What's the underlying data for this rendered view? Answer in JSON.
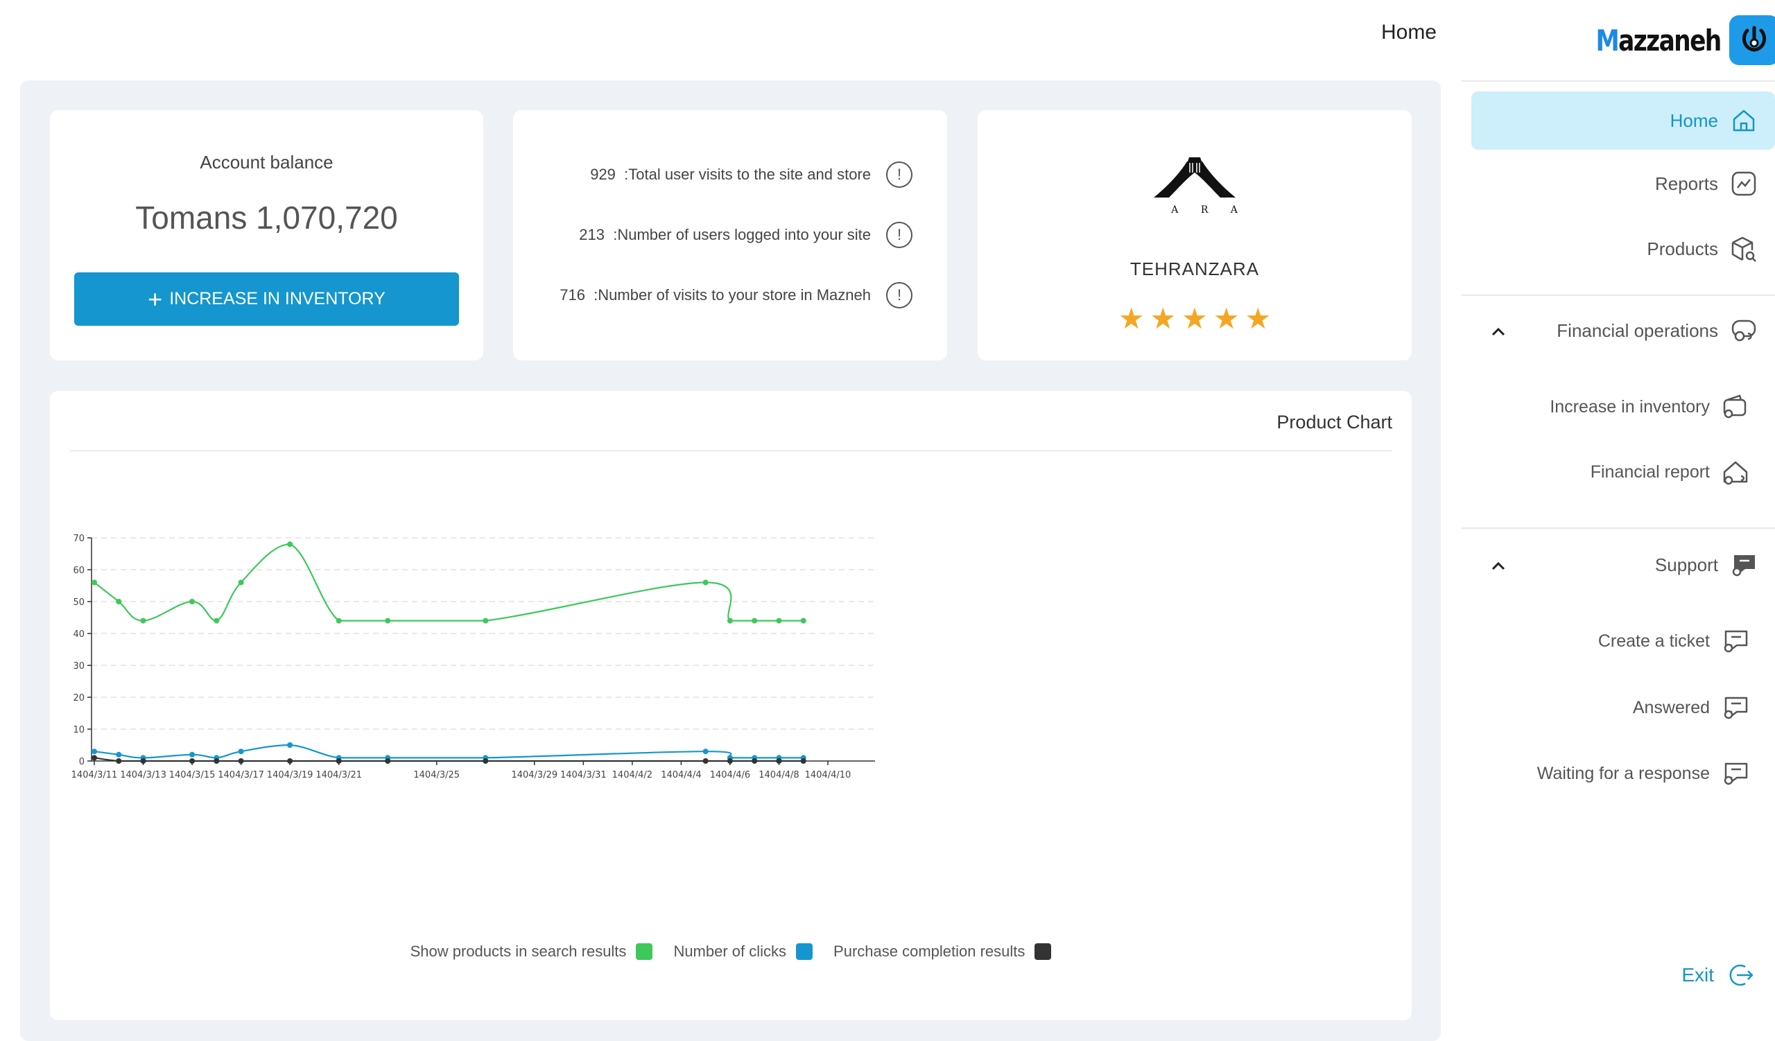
{
  "header": {
    "home_label": "Home"
  },
  "brand": {
    "name": "Mazzaneh",
    "first_letter": "M",
    "rest": "azzaneh",
    "accent": "#1e9be8"
  },
  "balance": {
    "title": "Account balance",
    "amount": "Tomans 1,070,720",
    "button_label": "INCREASE IN INVENTORY"
  },
  "stats": [
    {
      "value": "929",
      "label": ":Total user visits to the site and store"
    },
    {
      "value": "213",
      "label": ":Number of users logged into your site"
    },
    {
      "value": "716",
      "label": ":Number of visits to your store in Mazneh"
    }
  ],
  "store": {
    "name": "TEHRANZARA",
    "logo_letters": "Z A R A",
    "rating": 5
  },
  "sidebar": {
    "home": "Home",
    "reports": "Reports",
    "products": "Products",
    "financial_operations": "Financial operations",
    "increase_in_inventory": "Increase in inventory",
    "financial_report": "Financial report",
    "support": "Support",
    "create_ticket": "Create a ticket",
    "answered": "Answered",
    "waiting": "Waiting for a response",
    "exit": "Exit"
  },
  "chart_data": {
    "type": "line",
    "title": "Product Chart",
    "x": [
      "1404/3/11",
      "1404/3/12",
      "1404/3/13",
      "1404/3/15",
      "1404/3/16",
      "1404/3/17",
      "1404/3/19",
      "1404/3/21",
      "1404/3/23",
      "1404/3/27",
      "1404/4/5",
      "1404/4/6",
      "1404/4/7",
      "1404/4/8",
      "1404/4/9"
    ],
    "x_positions": [
      0,
      1,
      2,
      4,
      5,
      6,
      8,
      10,
      12,
      16,
      25,
      26,
      27,
      28,
      29
    ],
    "tick_labels": [
      {
        "label": "1404/3/11",
        "pos": 0
      },
      {
        "label": "1404/3/13",
        "pos": 2
      },
      {
        "label": "1404/3/15",
        "pos": 4
      },
      {
        "label": "1404/3/17",
        "pos": 6
      },
      {
        "label": "1404/3/19",
        "pos": 8
      },
      {
        "label": "1404/3/21",
        "pos": 10
      },
      {
        "label": "1404/3/25",
        "pos": 14
      },
      {
        "label": "1404/3/29",
        "pos": 18
      },
      {
        "label": "1404/3/31",
        "pos": 20
      },
      {
        "label": "1404/4/2",
        "pos": 22
      },
      {
        "label": "1404/4/4",
        "pos": 24
      },
      {
        "label": "1404/4/6",
        "pos": 26
      },
      {
        "label": "1404/4/8",
        "pos": 28
      },
      {
        "label": "1404/4/10",
        "pos": 30
      }
    ],
    "ylim": [
      0,
      70
    ],
    "yticks": [
      0,
      10,
      20,
      30,
      40,
      50,
      60,
      70
    ],
    "grid": true,
    "legend_position": "bottom",
    "series": [
      {
        "name": "Show products in search results",
        "color": "#3ec85a",
        "values": [
          56,
          50,
          44,
          50,
          44,
          56,
          68,
          44,
          44,
          44,
          56,
          44,
          44,
          44,
          44
        ]
      },
      {
        "name": "Number of clicks",
        "color": "#1596cf",
        "values": [
          3,
          2,
          1,
          2,
          1,
          3,
          5,
          1,
          1,
          1,
          3,
          1,
          1,
          1,
          1
        ]
      },
      {
        "name": "Purchase completion results",
        "color": "#333333",
        "values": [
          1,
          0,
          0,
          0,
          0,
          0,
          0,
          0,
          0,
          0,
          0,
          0,
          0,
          0,
          0
        ]
      }
    ]
  }
}
